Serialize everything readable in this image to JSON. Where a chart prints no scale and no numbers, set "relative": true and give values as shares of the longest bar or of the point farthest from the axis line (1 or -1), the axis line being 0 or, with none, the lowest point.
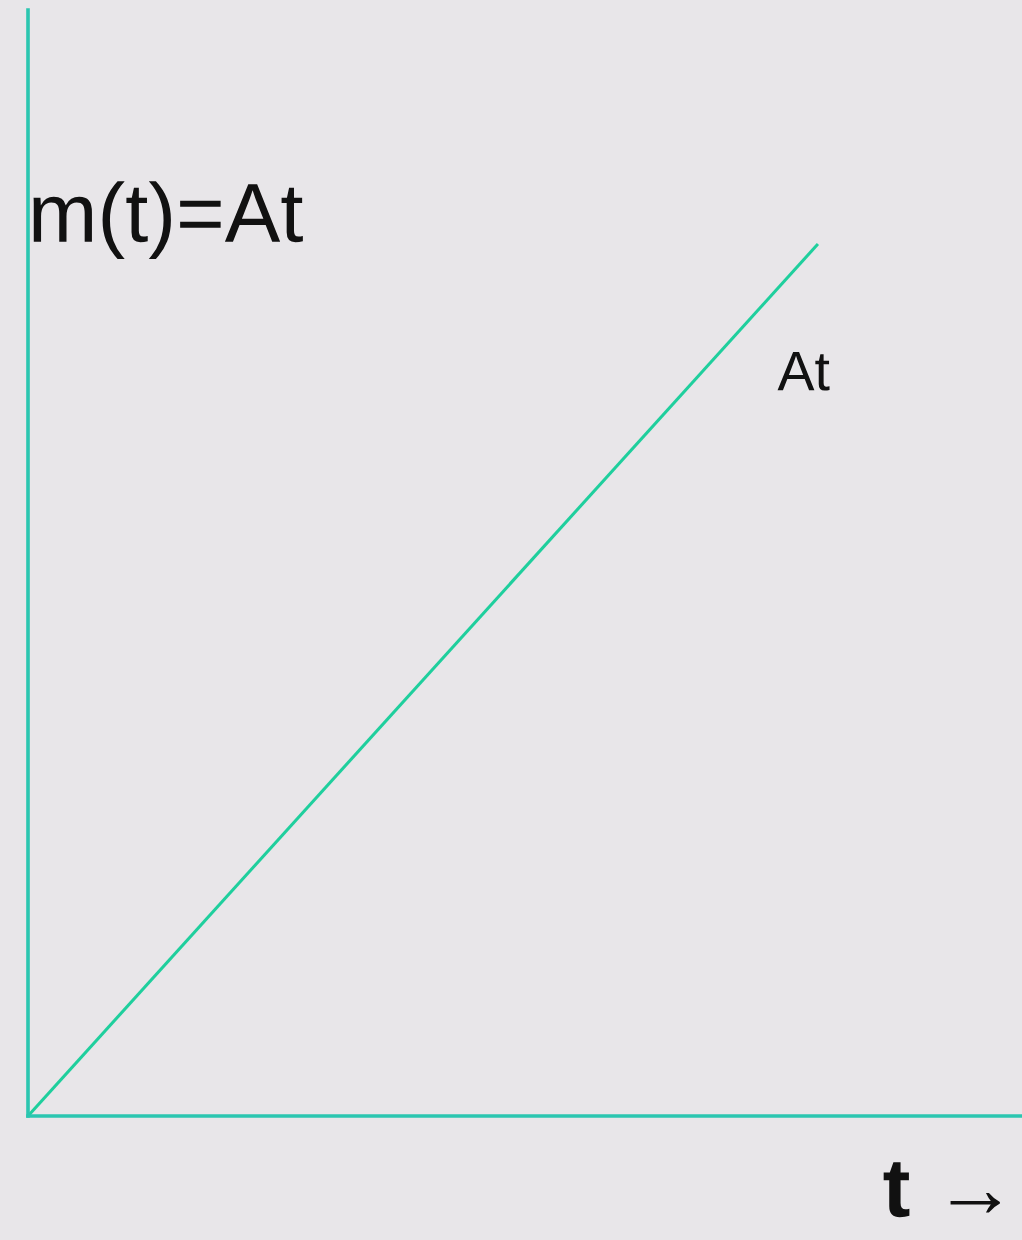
{
  "chart_data": {
    "type": "line",
    "title": "m(t)=At",
    "xlabel": "t →",
    "relative": true,
    "categories": [
      null,
      null
    ],
    "series": [
      {
        "name": "At",
        "color": "#1fcf9d",
        "values": [
          0,
          1
        ]
      }
    ],
    "grid": false,
    "legend": false,
    "marker": "none",
    "line_style": "solid"
  }
}
